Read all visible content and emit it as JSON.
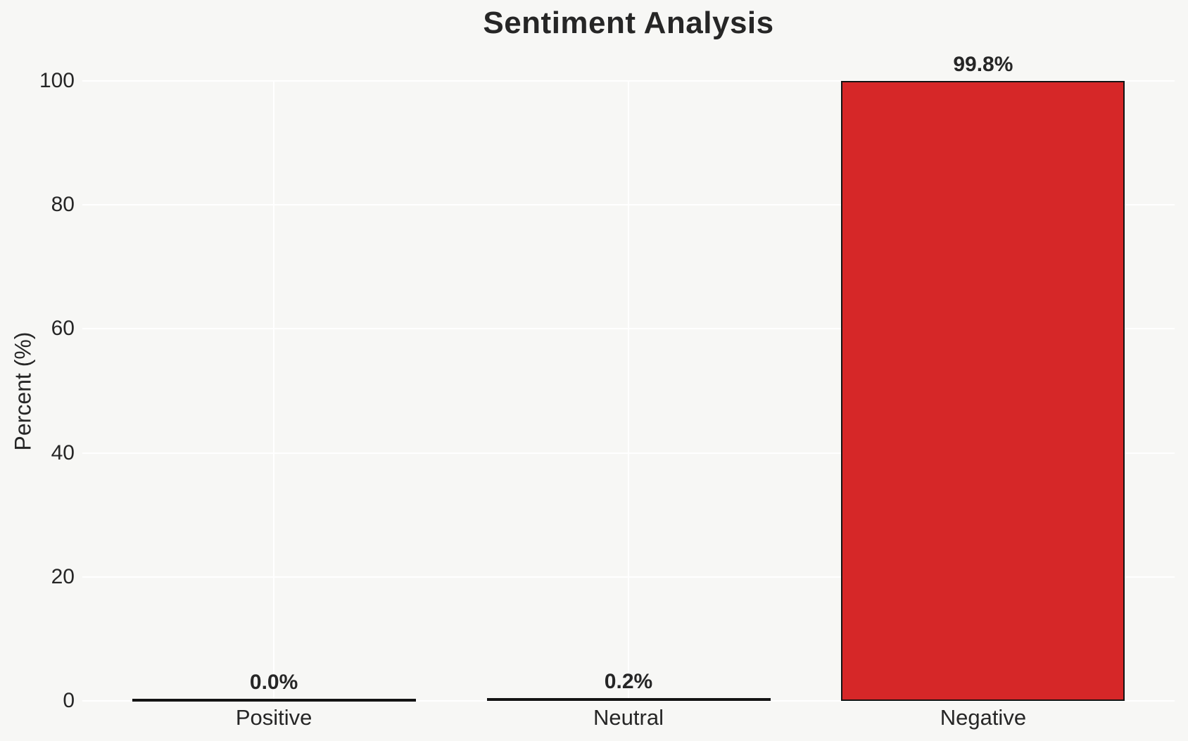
{
  "chart_data": {
    "type": "bar",
    "title": "Sentiment Analysis",
    "categories": [
      "Positive",
      "Neutral",
      "Negative"
    ],
    "values": [
      0.0,
      0.2,
      99.8
    ],
    "bar_labels": [
      "0.0%",
      "0.2%",
      "99.8%"
    ],
    "xlabel": "",
    "ylabel": "Percent (%)",
    "ylim": [
      0,
      100
    ],
    "yticks": [
      0,
      20,
      40,
      60,
      80,
      100
    ],
    "grid": true,
    "legend": "none",
    "colors": {
      "background": "#f7f7f5",
      "gridline": "#ffffff",
      "bar_fill": "#d62728",
      "bar_edge": "#141414",
      "text": "#262626"
    }
  }
}
